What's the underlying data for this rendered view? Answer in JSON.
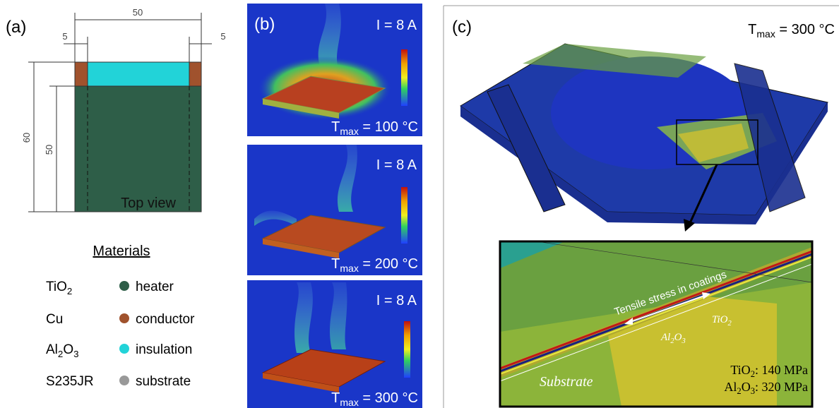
{
  "panel_a": {
    "label": "(a)",
    "dimensions": {
      "total_width": "50",
      "left_margin": "5",
      "right_margin": "5",
      "total_height": "60",
      "heater_height": "50"
    },
    "view_label": "Top view",
    "materials_title": "Materials",
    "materials": [
      {
        "formula": {
          "base": "TiO",
          "sub": "2"
        },
        "role": "heater"
      },
      {
        "formula": {
          "base": "Cu"
        },
        "role": "conductor"
      },
      {
        "formula": {
          "base": "Al",
          "sub": "2",
          "base2": "O",
          "sub2": "3"
        },
        "role": "insulation"
      },
      {
        "formula": {
          "base": "S235JR"
        },
        "role": "substrate"
      }
    ]
  },
  "panel_b": {
    "label": "(b)",
    "frames": [
      {
        "current": "I = 8 A",
        "tmax": {
          "base": "T",
          "sub": "max",
          "rest": " = 100 °C"
        }
      },
      {
        "current": "I = 8 A",
        "tmax": {
          "base": "T",
          "sub": "max",
          "rest": " = 200 °C"
        }
      },
      {
        "current": "I = 8 A",
        "tmax": {
          "base": "T",
          "sub": "max",
          "rest": " = 300 °C"
        }
      }
    ]
  },
  "panel_c": {
    "label": "(c)",
    "tmax": {
      "base": "T",
      "sub": "max",
      "rest": " = 300 °C"
    },
    "inset": {
      "stress_label": "Tensile stress in coatings",
      "tio2": {
        "base": "TiO",
        "sub": "2"
      },
      "al2o3": {
        "base": "Al",
        "sub": "2",
        "base2": "O",
        "sub2": "3"
      },
      "substrate": "Substrate",
      "stress_tio2": {
        "base": "TiO",
        "sub": "2",
        "rest": ": 140 MPa"
      },
      "stress_al2o3": {
        "base": "Al",
        "sub": "2",
        "base2": "O",
        "sub2": "3",
        "rest": ": 320 MPa"
      }
    }
  }
}
